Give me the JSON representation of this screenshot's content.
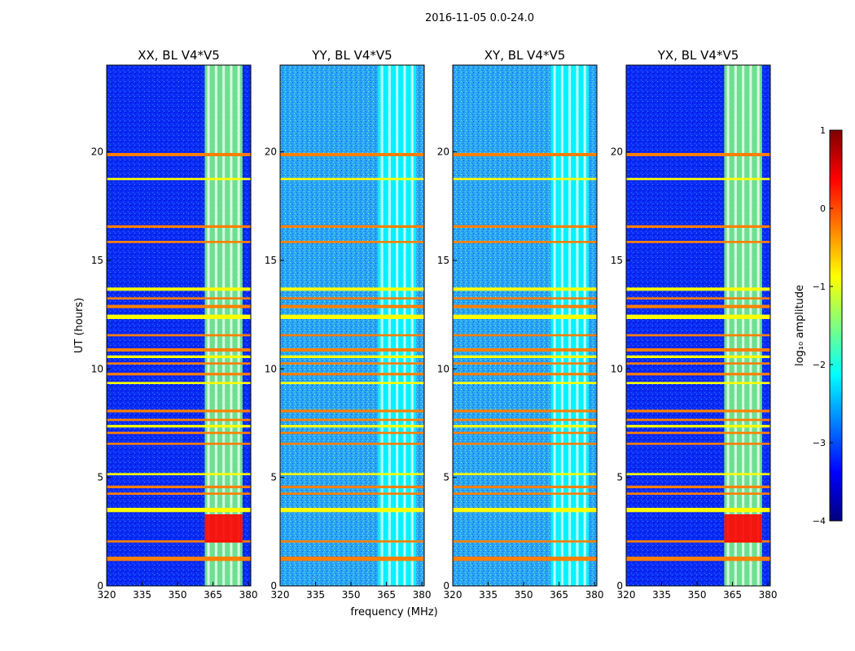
{
  "suptitle": "2016-11-05 0.0-24.0",
  "chart_data": {
    "type": "heatmap",
    "ylabel": "UT (hours)",
    "xlabel": "frequency (MHz)",
    "xlim": [
      320,
      381
    ],
    "ylim": [
      0,
      24
    ],
    "xticks": [
      320,
      335,
      350,
      365,
      380
    ],
    "yticks": [
      0,
      5,
      10,
      15,
      20
    ],
    "colorbar": {
      "label": "log₁₀ amplitude",
      "range": [
        -4,
        1
      ],
      "ticks": [
        "1",
        "0",
        "−1",
        "−2",
        "−3",
        "−4"
      ],
      "colormap": "jet",
      "colors": [
        "#00007f",
        "#0000ff",
        "#007fff",
        "#00ffff",
        "#7fff7f",
        "#ffff00",
        "#ff7f00",
        "#ff0000",
        "#7f0000"
      ]
    },
    "panels": [
      {
        "title": "XX, BL V4*V5",
        "background_log_amplitude": -3.0,
        "rfi_band_mhz": [
          361.5,
          377.5
        ]
      },
      {
        "title": "YY, BL V4*V5",
        "background_log_amplitude": -2.2,
        "rfi_band_mhz": [
          361.5,
          377.5
        ]
      },
      {
        "title": "XY, BL V4*V5",
        "background_log_amplitude": -2.2,
        "rfi_band_mhz": [
          361.5,
          377.5
        ]
      },
      {
        "title": "YX, BL V4*V5",
        "background_log_amplitude": -3.0,
        "rfi_band_mhz": [
          361.5,
          377.5
        ]
      }
    ],
    "rfi_bands_log_amplitude": {
      "strong": 0.0,
      "medium": -1.0
    },
    "rfi_time_bands_hours": [
      [
        1.15,
        1.35
      ],
      [
        2.0,
        2.1
      ],
      [
        3.4,
        3.6
      ],
      [
        4.2,
        4.3
      ],
      [
        4.5,
        4.62
      ],
      [
        5.1,
        5.2
      ],
      [
        6.5,
        6.6
      ],
      [
        7.0,
        7.1
      ],
      [
        7.3,
        7.42
      ],
      [
        7.6,
        7.7
      ],
      [
        8.0,
        8.12
      ],
      [
        9.3,
        9.4
      ],
      [
        9.7,
        9.82
      ],
      [
        10.2,
        10.3
      ],
      [
        10.5,
        10.62
      ],
      [
        10.8,
        10.95
      ],
      [
        11.5,
        11.6
      ],
      [
        12.3,
        12.5
      ],
      [
        12.8,
        12.95
      ],
      [
        13.2,
        13.3
      ],
      [
        13.6,
        13.75
      ],
      [
        15.8,
        15.9
      ],
      [
        16.5,
        16.62
      ],
      [
        18.7,
        18.8
      ],
      [
        19.8,
        19.95
      ]
    ]
  }
}
